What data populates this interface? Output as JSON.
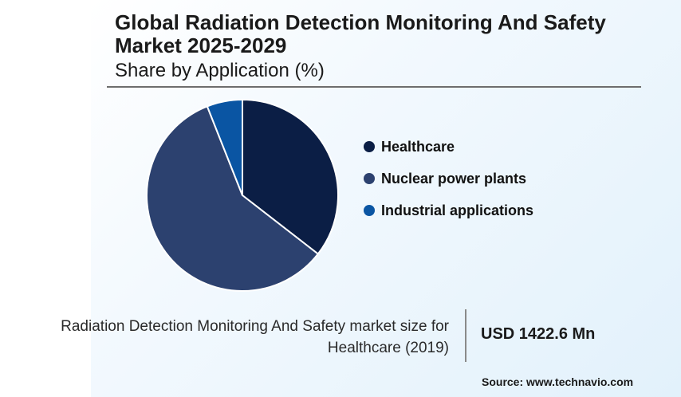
{
  "chart_data": {
    "type": "pie",
    "title": "Global Radiation Detection Monitoring And Safety Market 2025-2029",
    "subtitle": "Share by Application (%)",
    "slices": [
      {
        "name": "Healthcare",
        "value": 35.5,
        "color": "#0b1e45"
      },
      {
        "name": "Nuclear power plants",
        "value": 58.5,
        "color": "#2c416f"
      },
      {
        "name": "Industrial applications",
        "value": 6.0,
        "color": "#0a55a3"
      }
    ],
    "legend": [
      "Healthcare",
      "Nuclear power plants",
      "Industrial applications"
    ],
    "legend_position": "right"
  },
  "footer": {
    "description": "Radiation Detection Monitoring And Safety market size for Healthcare (2019)",
    "value": "USD 1422.6 Mn"
  },
  "source": "Source: www.technavio.com"
}
